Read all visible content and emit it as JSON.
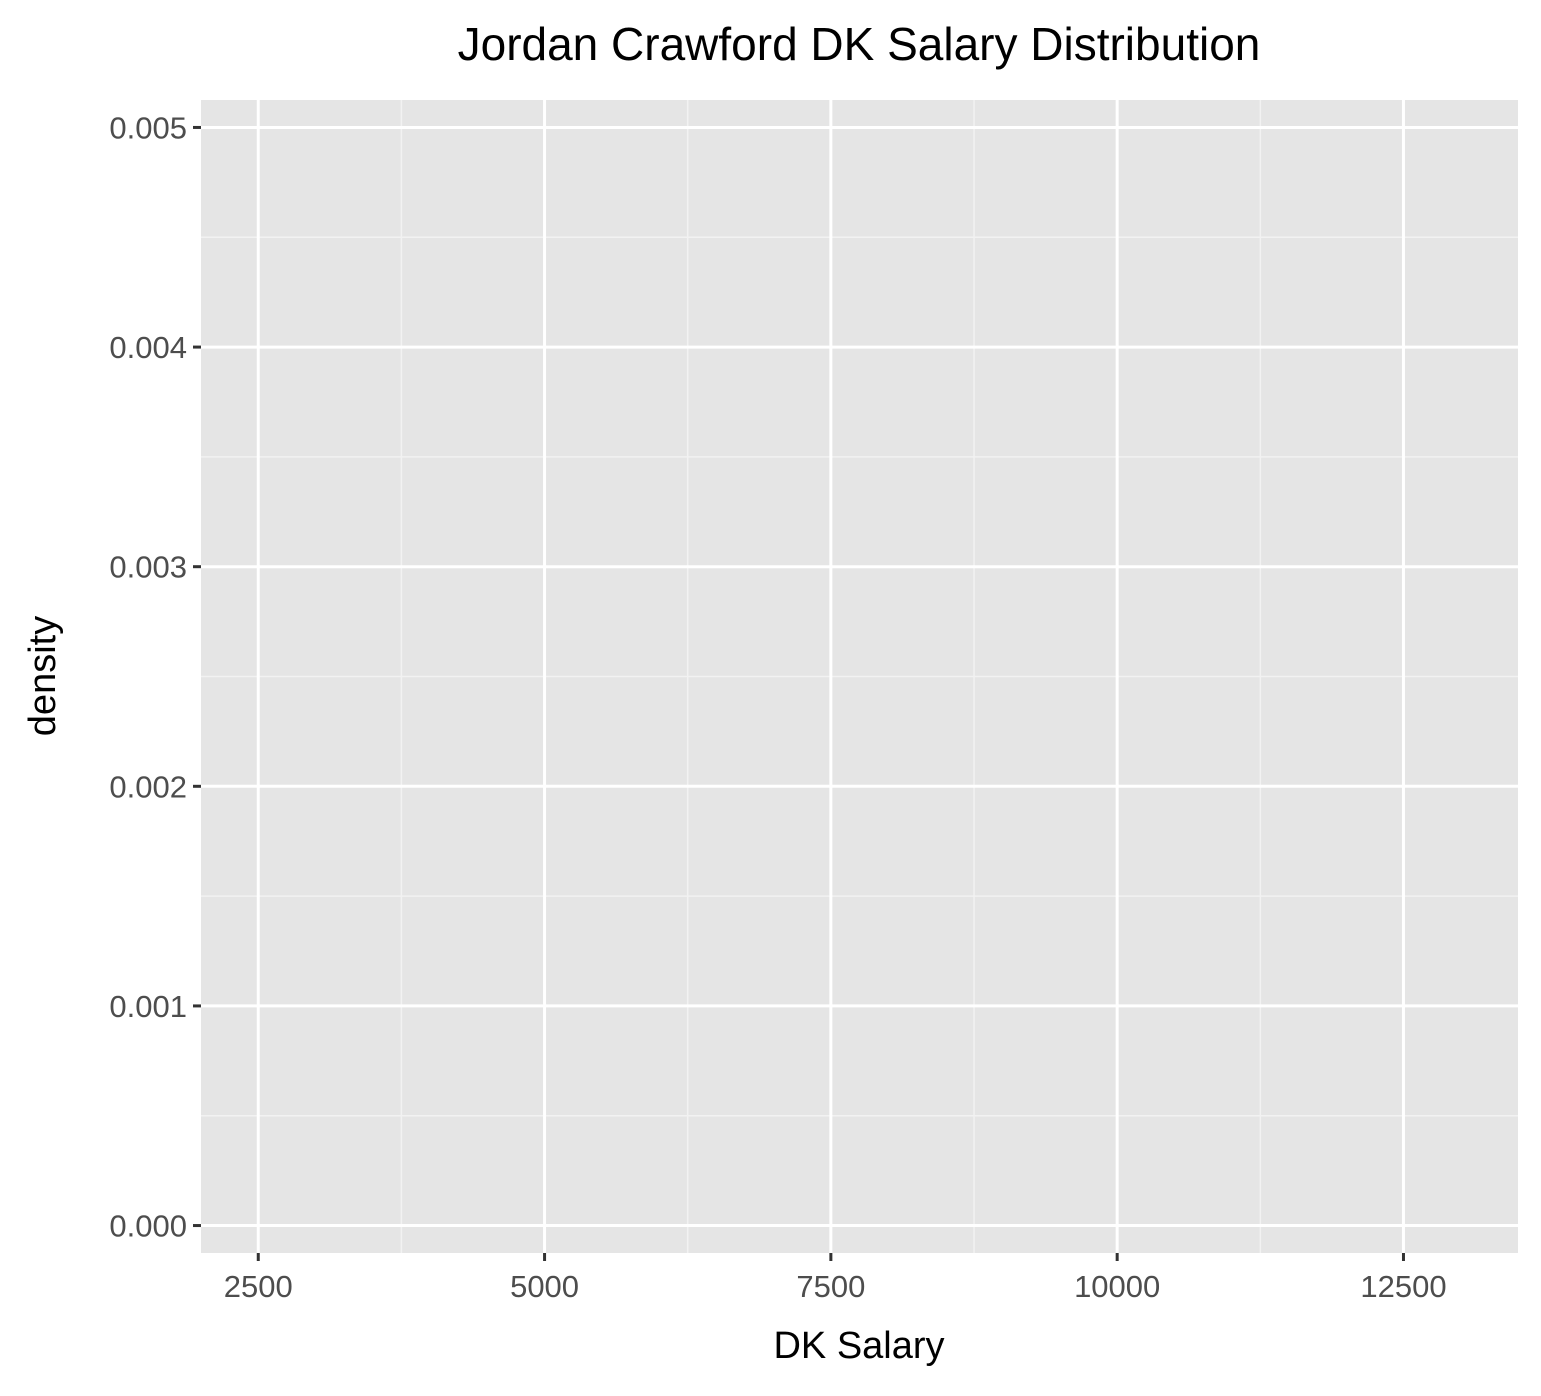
{
  "chart_data": {
    "type": "area",
    "title": "Jordan Crawford DK Salary Distribution",
    "xlabel": "DK Salary",
    "ylabel": "density",
    "xlim": [
      2000,
      13500
    ],
    "ylim": [
      -0.000125,
      0.005125
    ],
    "x_ticks": [
      2500,
      5000,
      7500,
      10000,
      12500
    ],
    "x_tick_labels": [
      "2500",
      "5000",
      "7500",
      "10000",
      "12500"
    ],
    "x_minor_ticks": [
      3750,
      6250,
      8750,
      11250
    ],
    "y_ticks": [
      0.0,
      0.001,
      0.002,
      0.003,
      0.004,
      0.005
    ],
    "y_tick_labels": [
      "0.000",
      "0.001",
      "0.002",
      "0.003",
      "0.004",
      "0.005"
    ],
    "y_minor_ticks": [
      0.0005,
      0.0015,
      0.0025,
      0.0035,
      0.0045
    ],
    "series": [],
    "grid": true,
    "colors": {
      "panel_background": "#e5e5e5",
      "grid_major": "#ffffff",
      "grid_minor": "#f2f2f2",
      "tick_text": "#4d4d4d",
      "axis_title": "#000000",
      "tick_mark": "#333333"
    }
  }
}
